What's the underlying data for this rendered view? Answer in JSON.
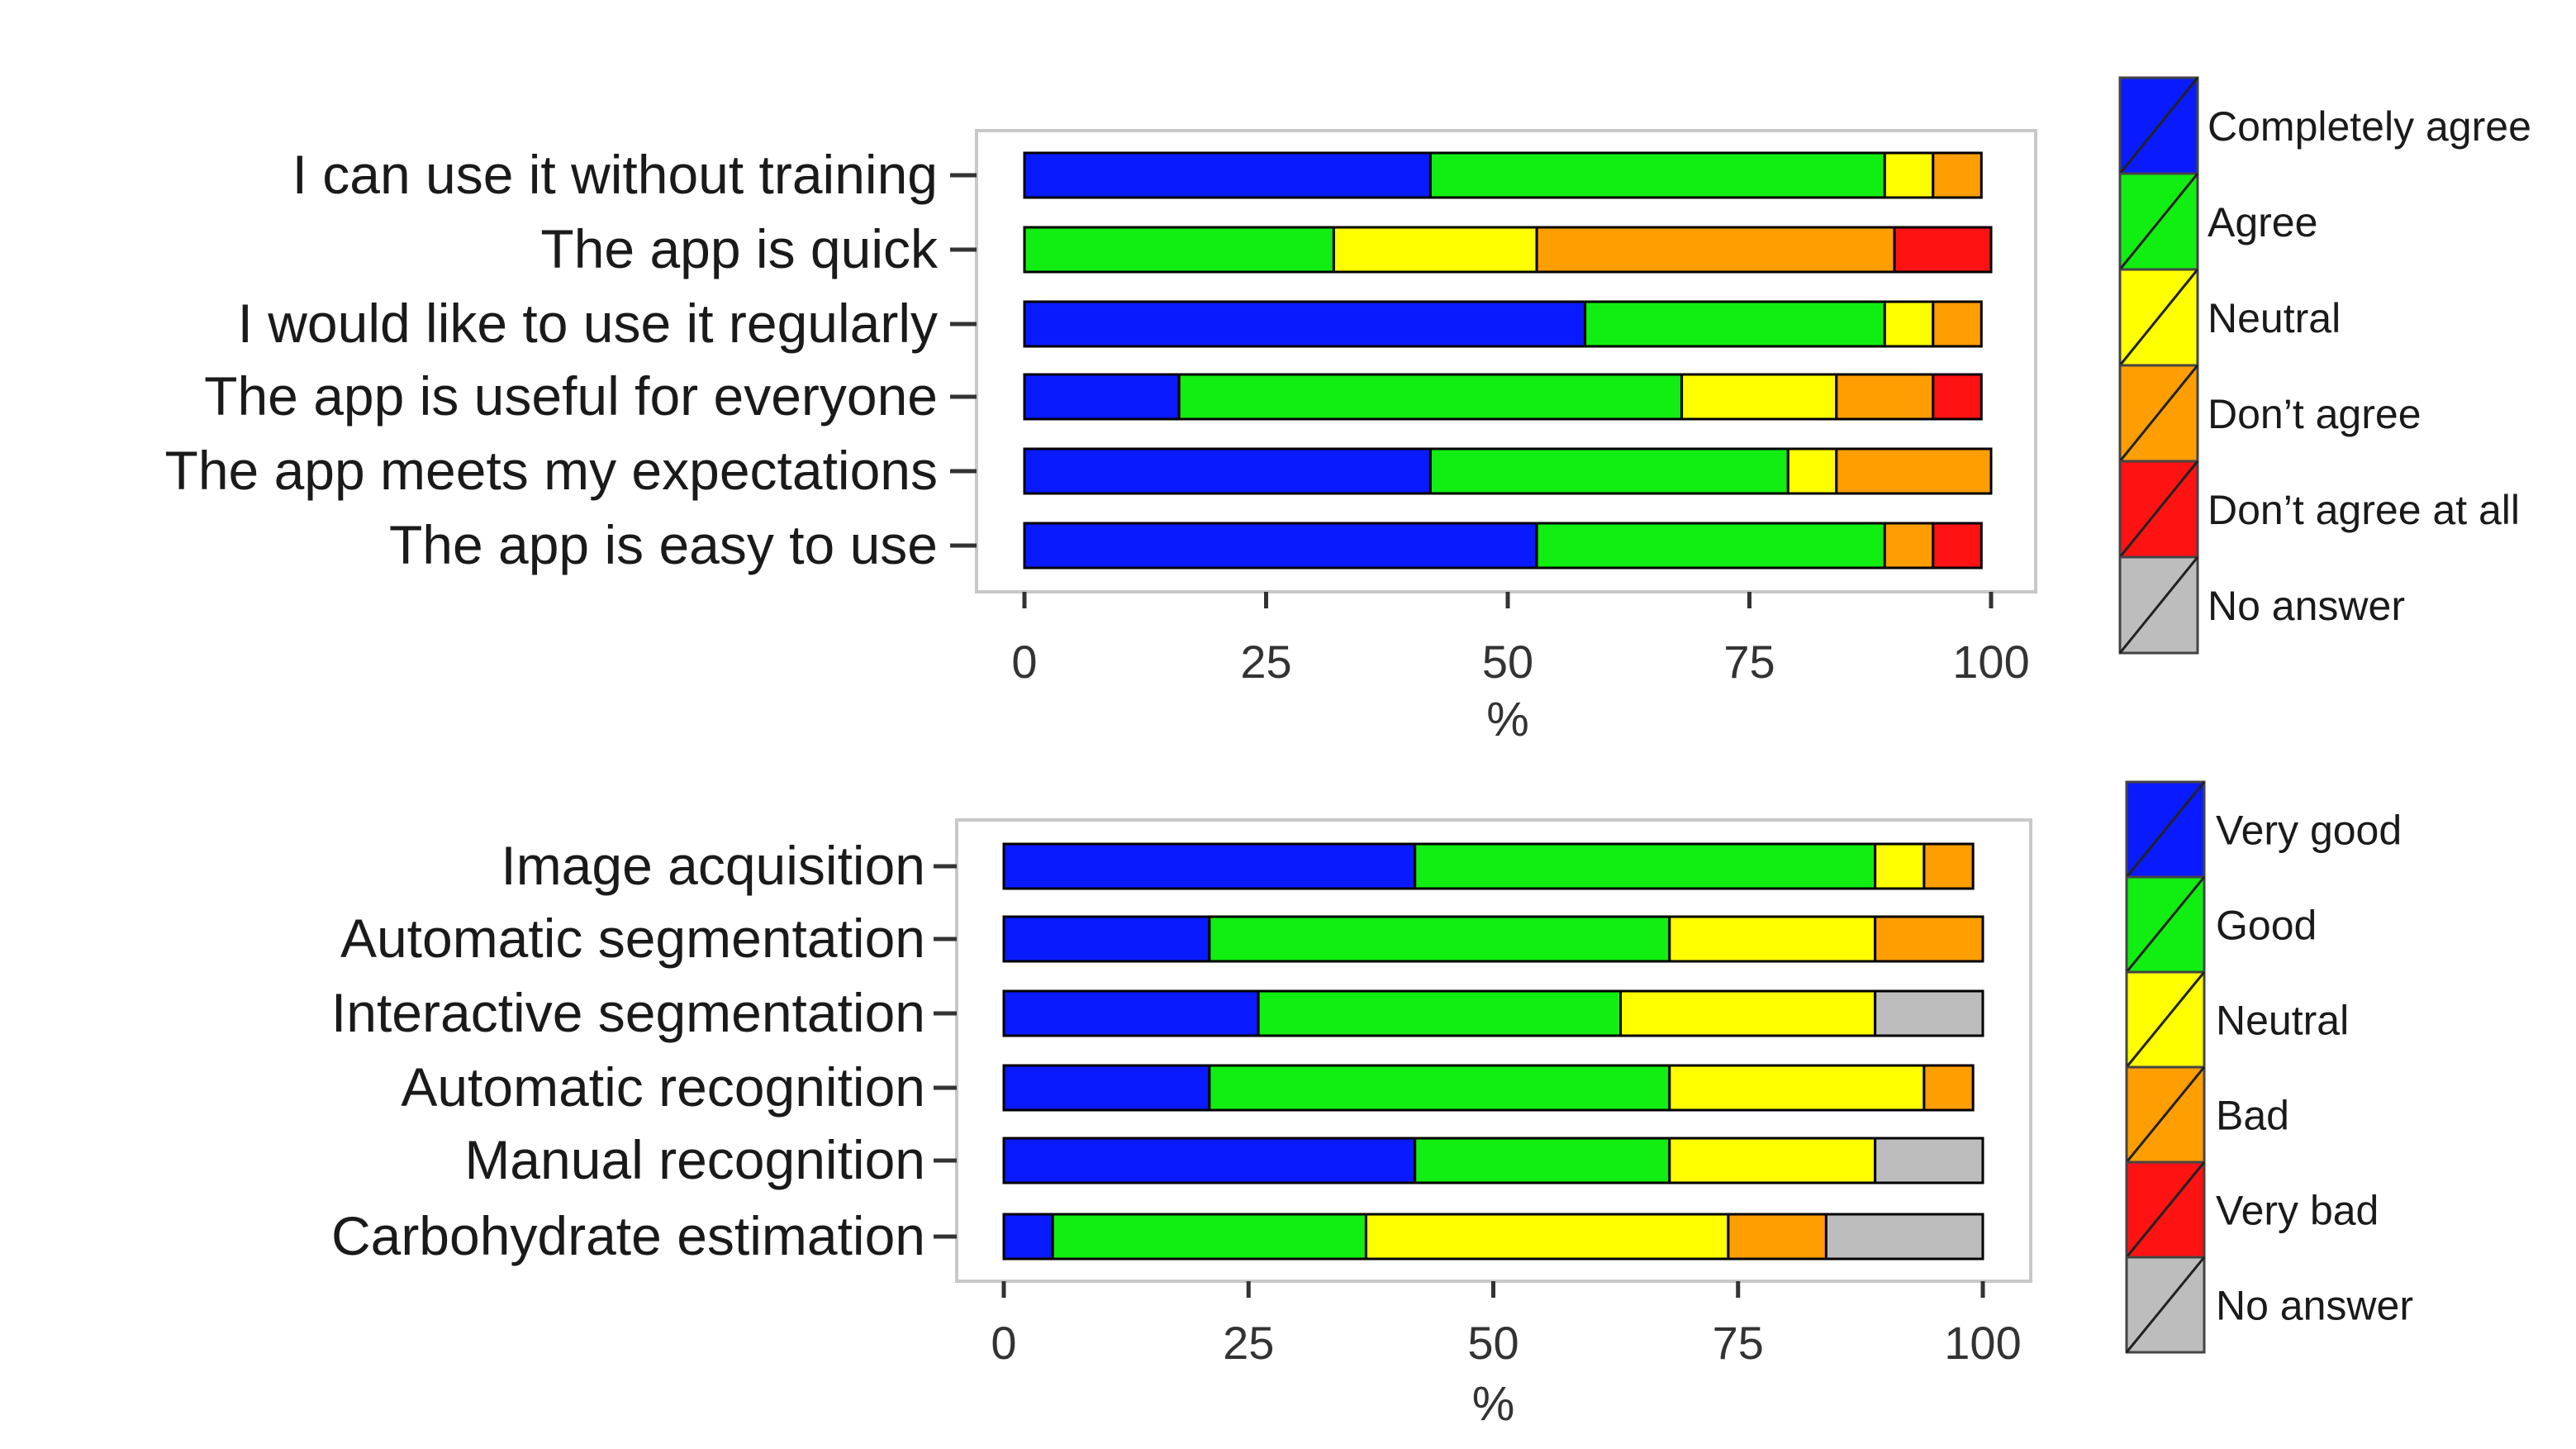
{
  "colors": {
    "blue": "#0a1aff",
    "green": "#11ee11",
    "yellow": "#ffff00",
    "orange": "#ff9e00",
    "red": "#ff1212",
    "gray": "#bdbdbd"
  },
  "chart_data": [
    {
      "type": "bar",
      "orientation": "horizontal",
      "stacked": true,
      "xlabel": "%",
      "xlim": [
        0,
        100
      ],
      "xticks": [
        "0",
        "25",
        "50",
        "75",
        "100"
      ],
      "grid": false,
      "legend_position": "right",
      "categories": [
        "I can use it without training",
        "The app is quick",
        "I would like to use it regularly",
        "The app is useful for everyone",
        "The app meets my expectations",
        "The app is easy to use"
      ],
      "series": [
        {
          "name": "Completely agree",
          "color": "blue",
          "values": [
            42,
            0,
            58,
            16,
            42,
            53
          ]
        },
        {
          "name": "Agree",
          "color": "green",
          "values": [
            47,
            32,
            31,
            52,
            37,
            36
          ]
        },
        {
          "name": "Neutral",
          "color": "yellow",
          "values": [
            5,
            21,
            5,
            16,
            5,
            0
          ]
        },
        {
          "name": "Don’t agree",
          "color": "orange",
          "values": [
            5,
            37,
            5,
            10,
            16,
            5
          ]
        },
        {
          "name": "Don’t agree at all",
          "color": "red",
          "values": [
            0,
            10,
            0,
            5,
            0,
            5
          ]
        },
        {
          "name": "No answer",
          "color": "gray",
          "values": [
            0,
            0,
            0,
            0,
            0,
            0
          ]
        }
      ]
    },
    {
      "type": "bar",
      "orientation": "horizontal",
      "stacked": true,
      "xlabel": "%",
      "xlim": [
        0,
        100
      ],
      "xticks": [
        "0",
        "25",
        "50",
        "75",
        "100"
      ],
      "grid": false,
      "legend_position": "right",
      "categories": [
        "Image acquisition",
        "Automatic segmentation",
        "Interactive segmentation",
        "Automatic recognition",
        "Manual recognition",
        "Carbohydrate estimation"
      ],
      "series": [
        {
          "name": "Very good",
          "color": "blue",
          "values": [
            42,
            21,
            26,
            21,
            42,
            5
          ]
        },
        {
          "name": "Good",
          "color": "green",
          "values": [
            47,
            47,
            37,
            47,
            26,
            32
          ]
        },
        {
          "name": "Neutral",
          "color": "yellow",
          "values": [
            5,
            21,
            26,
            26,
            21,
            37
          ]
        },
        {
          "name": "Bad",
          "color": "orange",
          "values": [
            5,
            11,
            0,
            5,
            0,
            10
          ]
        },
        {
          "name": "Very bad",
          "color": "red",
          "values": [
            0,
            0,
            0,
            0,
            0,
            0
          ]
        },
        {
          "name": "No answer",
          "color": "gray",
          "values": [
            0,
            0,
            11,
            0,
            11,
            16
          ]
        }
      ]
    }
  ]
}
